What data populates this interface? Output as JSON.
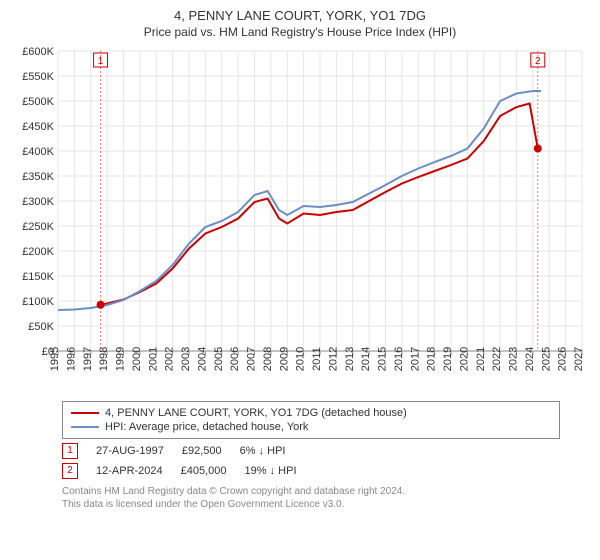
{
  "title": "4, PENNY LANE COURT, YORK, YO1 7DG",
  "subtitle": "Price paid vs. HM Land Registry's House Price Index (HPI)",
  "chart": {
    "type": "line",
    "background_color": "#ffffff",
    "grid_color": "#e5e5e5",
    "axis_color": "#888888",
    "label_fontsize": 11,
    "y": {
      "min": 0,
      "max": 600000,
      "step": 50000,
      "prefix": "£",
      "suffix": "K",
      "divisor": 1000
    },
    "x": {
      "years": [
        1995,
        1996,
        1997,
        1998,
        1999,
        2000,
        2001,
        2002,
        2003,
        2004,
        2005,
        2006,
        2007,
        2008,
        2009,
        2010,
        2011,
        2012,
        2013,
        2014,
        2015,
        2016,
        2017,
        2018,
        2019,
        2020,
        2021,
        2022,
        2023,
        2024,
        2025,
        2026,
        2027
      ]
    },
    "series": [
      {
        "name": "4, PENNY LANE COURT, YORK, YO1 7DG (detached house)",
        "color": "#cc0000",
        "width": 2,
        "points": [
          [
            1997.6,
            92500
          ],
          [
            1998,
            95000
          ],
          [
            1999,
            103000
          ],
          [
            2000,
            118000
          ],
          [
            2001,
            135000
          ],
          [
            2002,
            165000
          ],
          [
            2003,
            205000
          ],
          [
            2004,
            235000
          ],
          [
            2005,
            248000
          ],
          [
            2006,
            265000
          ],
          [
            2007,
            298000
          ],
          [
            2007.8,
            305000
          ],
          [
            2008.5,
            265000
          ],
          [
            2009,
            255000
          ],
          [
            2010,
            275000
          ],
          [
            2011,
            272000
          ],
          [
            2012,
            278000
          ],
          [
            2013,
            282000
          ],
          [
            2014,
            300000
          ],
          [
            2015,
            318000
          ],
          [
            2016,
            335000
          ],
          [
            2017,
            348000
          ],
          [
            2018,
            360000
          ],
          [
            2019,
            372000
          ],
          [
            2020,
            385000
          ],
          [
            2021,
            420000
          ],
          [
            2022,
            470000
          ],
          [
            2023,
            488000
          ],
          [
            2023.8,
            495000
          ],
          [
            2024.3,
            405000
          ]
        ]
      },
      {
        "name": "HPI: Average price, detached house, York",
        "color": "#6a8fc5",
        "width": 2,
        "points": [
          [
            1995,
            82000
          ],
          [
            1996,
            83000
          ],
          [
            1997,
            86000
          ],
          [
            1998,
            92000
          ],
          [
            1999,
            102000
          ],
          [
            2000,
            120000
          ],
          [
            2001,
            140000
          ],
          [
            2002,
            172000
          ],
          [
            2003,
            215000
          ],
          [
            2004,
            248000
          ],
          [
            2005,
            260000
          ],
          [
            2006,
            278000
          ],
          [
            2007,
            312000
          ],
          [
            2007.8,
            320000
          ],
          [
            2008.5,
            282000
          ],
          [
            2009,
            272000
          ],
          [
            2010,
            290000
          ],
          [
            2011,
            288000
          ],
          [
            2012,
            292000
          ],
          [
            2013,
            298000
          ],
          [
            2014,
            315000
          ],
          [
            2015,
            332000
          ],
          [
            2016,
            350000
          ],
          [
            2017,
            365000
          ],
          [
            2018,
            378000
          ],
          [
            2019,
            390000
          ],
          [
            2020,
            405000
          ],
          [
            2021,
            445000
          ],
          [
            2022,
            500000
          ],
          [
            2023,
            515000
          ],
          [
            2024,
            520000
          ],
          [
            2024.5,
            520000
          ]
        ]
      }
    ],
    "markers": [
      {
        "n": "1",
        "year": 1997.6,
        "value": 92500,
        "dot_color": "#cc0000"
      },
      {
        "n": "2",
        "year": 2024.3,
        "value": 405000,
        "dot_color": "#cc0000"
      }
    ]
  },
  "transactions": [
    {
      "n": "1",
      "date": "27-AUG-1997",
      "price": "£92,500",
      "delta": "6% ↓ HPI"
    },
    {
      "n": "2",
      "date": "12-APR-2024",
      "price": "£405,000",
      "delta": "19% ↓ HPI"
    }
  ],
  "credit1": "Contains HM Land Registry data © Crown copyright and database right 2024.",
  "credit2": "This data is licensed under the Open Government Licence v3.0."
}
